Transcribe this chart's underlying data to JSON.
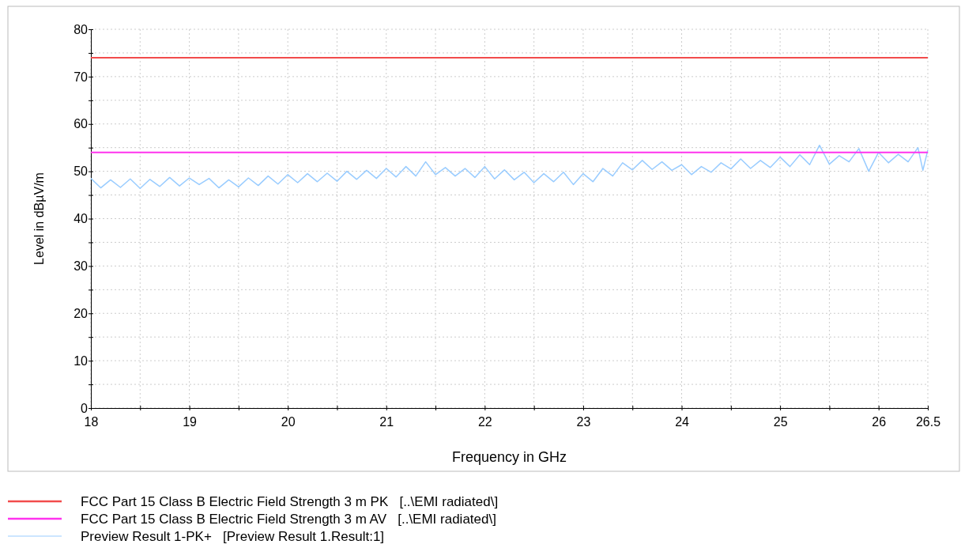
{
  "chart_data": {
    "type": "line",
    "xlabel": "Frequency in GHz",
    "ylabel": "Level in dBµV/m",
    "xlim": [
      18,
      26.5
    ],
    "ylim": [
      0,
      80
    ],
    "xticks": [
      18,
      {
        "value": 18.5,
        "label": null
      },
      19,
      {
        "value": 19.5,
        "label": null
      },
      20,
      {
        "value": 20.5,
        "label": null
      },
      21,
      {
        "value": 21.5,
        "label": null
      },
      22,
      {
        "value": 22.5,
        "label": null
      },
      23,
      {
        "value": 23.5,
        "label": null
      },
      24,
      {
        "value": 24.5,
        "label": null
      },
      25,
      {
        "value": 25.5,
        "label": null
      },
      26,
      26.5
    ],
    "yticks": [
      0,
      {
        "value": 5,
        "label": null
      },
      10,
      {
        "value": 15,
        "label": null
      },
      20,
      {
        "value": 25,
        "label": null
      },
      30,
      {
        "value": 35,
        "label": null
      },
      40,
      {
        "value": 45,
        "label": null
      },
      50,
      {
        "value": 55,
        "label": null
      },
      60,
      {
        "value": 65,
        "label": null
      },
      70,
      {
        "value": 75,
        "label": null
      },
      80
    ],
    "grid": true,
    "legend": "bottom",
    "marker": "none",
    "line_style": "solid",
    "series": [
      {
        "name": "FCC Part 15 Class B Electric Field Strength 3 m PK   [..\\EMI radiated\\]",
        "color": "#f24b4b",
        "x": [
          18,
          26.5
        ],
        "values": [
          74,
          74
        ]
      },
      {
        "name": "FCC Part 15 Class B Electric Field Strength 3 m AV   [..\\EMI radiated\\]",
        "color": "#ff33ee",
        "x": [
          18,
          26.5
        ],
        "values": [
          54,
          54
        ]
      },
      {
        "name": "Preview Result 1-PK+   [Preview Result 1.Result:1]",
        "color": "#99ccff",
        "x": [
          18.0,
          18.1,
          18.2,
          18.3,
          18.4,
          18.5,
          18.6,
          18.7,
          18.8,
          18.9,
          19.0,
          19.1,
          19.2,
          19.3,
          19.4,
          19.5,
          19.6,
          19.7,
          19.8,
          19.9,
          20.0,
          20.1,
          20.2,
          20.3,
          20.4,
          20.5,
          20.6,
          20.7,
          20.8,
          20.9,
          21.0,
          21.1,
          21.2,
          21.3,
          21.4,
          21.5,
          21.6,
          21.7,
          21.8,
          21.9,
          22.0,
          22.1,
          22.2,
          22.3,
          22.4,
          22.5,
          22.6,
          22.7,
          22.8,
          22.9,
          23.0,
          23.1,
          23.2,
          23.3,
          23.4,
          23.5,
          23.6,
          23.7,
          23.8,
          23.9,
          24.0,
          24.1,
          24.2,
          24.3,
          24.4,
          24.5,
          24.6,
          24.7,
          24.8,
          24.9,
          25.0,
          25.1,
          25.2,
          25.3,
          25.4,
          25.5,
          25.6,
          25.7,
          25.8,
          25.9,
          26.0,
          26.1,
          26.2,
          26.3,
          26.4,
          26.45,
          26.5
        ],
        "values": [
          48.5,
          46.5,
          48.2,
          46.6,
          48.4,
          46.4,
          48.3,
          46.8,
          48.7,
          46.9,
          48.6,
          47.2,
          48.5,
          46.5,
          48.2,
          46.7,
          48.6,
          47.0,
          49.0,
          47.3,
          49.3,
          47.6,
          49.5,
          47.8,
          49.6,
          47.9,
          50.0,
          48.3,
          50.2,
          48.5,
          50.6,
          48.8,
          51.0,
          49.0,
          52.0,
          49.3,
          50.8,
          49.0,
          50.6,
          48.7,
          51.0,
          48.4,
          50.3,
          48.2,
          49.8,
          47.6,
          49.5,
          47.8,
          49.8,
          47.2,
          49.5,
          47.8,
          50.6,
          49.0,
          51.8,
          50.3,
          52.3,
          50.4,
          52.0,
          50.2,
          51.4,
          49.3,
          51.0,
          49.8,
          51.8,
          50.5,
          52.6,
          50.6,
          52.3,
          50.8,
          53.0,
          51.0,
          53.5,
          51.4,
          55.5,
          51.5,
          53.3,
          52.0,
          54.8,
          50.0,
          54.0,
          51.8,
          53.6,
          52.0,
          55.0,
          50.2,
          54.5
        ]
      }
    ]
  }
}
